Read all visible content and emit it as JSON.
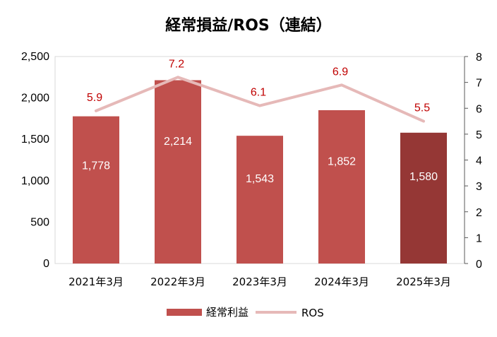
{
  "chart_data": {
    "type": "bar",
    "title": "経常損益/ROS（連結）",
    "categories": [
      "2021年3月",
      "2022年3月",
      "2023年3月",
      "2024年3月",
      "2025年3月"
    ],
    "series": [
      {
        "name": "経常利益",
        "type": "bar",
        "axis": "left",
        "values": [
          1778,
          2214,
          1543,
          1852,
          1580
        ],
        "labels": [
          "1,778",
          "2,214",
          "1,543",
          "1,852",
          "1,580"
        ],
        "color": "#c0504d",
        "highlight_color": "#953735",
        "highlight_index": 4
      },
      {
        "name": "ROS",
        "type": "line",
        "axis": "right",
        "values": [
          5.9,
          7.2,
          6.1,
          6.9,
          5.5
        ],
        "labels": [
          "5.9",
          "7.2",
          "6.1",
          "6.9",
          "5.5"
        ],
        "color": "#e6b9b8",
        "label_color": "#c00000"
      }
    ],
    "y_left": {
      "lim": [
        0,
        2500
      ],
      "ticks": [
        0,
        500,
        1000,
        1500,
        2000,
        2500
      ],
      "tick_labels": [
        "0",
        "500",
        "1,000",
        "1,500",
        "2,000",
        "2,500"
      ]
    },
    "y_right": {
      "lim": [
        0,
        8
      ],
      "ticks": [
        0,
        1,
        2,
        3,
        4,
        5,
        6,
        7,
        8
      ],
      "tick_labels": [
        "0",
        "1",
        "2",
        "3",
        "4",
        "5",
        "6",
        "7",
        "8"
      ]
    },
    "grid": false,
    "legend": "bottom"
  }
}
